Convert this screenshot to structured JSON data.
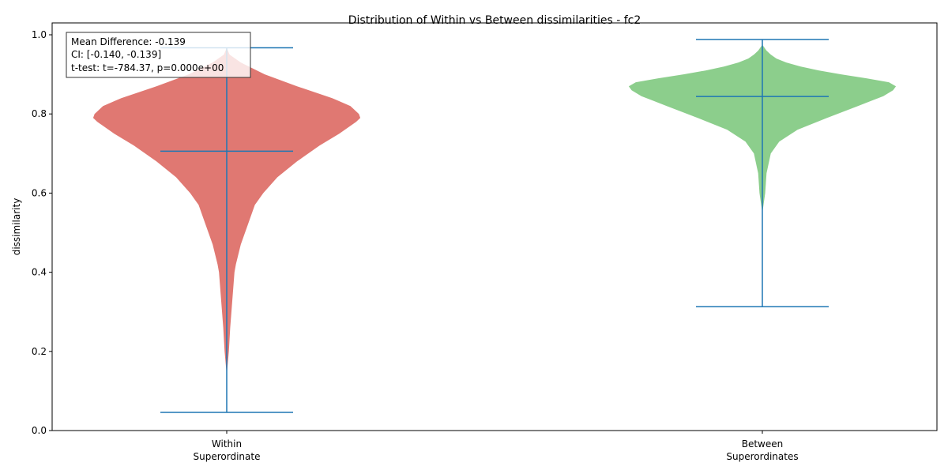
{
  "chart_data": {
    "type": "violin",
    "title": "Distribution of Within vs Between dissimilarities - fc2",
    "xlabel": "",
    "ylabel": "dissimilarity",
    "ylim": [
      0.0,
      1.03
    ],
    "yticks": [
      0.0,
      0.2,
      0.4,
      0.6,
      0.8,
      1.0
    ],
    "ytick_labels": [
      "0.0",
      "0.2",
      "0.4",
      "0.6",
      "0.8",
      "1.0"
    ],
    "grid": false,
    "colors": {
      "line": "#1f77b4"
    },
    "categories": [
      {
        "line1": "Within",
        "line2": "Superordinate"
      },
      {
        "line1": "Between",
        "line2": "Superordinates"
      }
    ],
    "series": [
      {
        "color": "#e07872",
        "min": 0.046,
        "max": 0.967,
        "mean": 0.706,
        "density": [
          [
            0.14,
            0.0
          ],
          [
            0.2,
            0.015
          ],
          [
            0.26,
            0.025
          ],
          [
            0.33,
            0.04
          ],
          [
            0.4,
            0.055
          ],
          [
            0.42,
            0.065
          ],
          [
            0.47,
            0.1
          ],
          [
            0.52,
            0.15
          ],
          [
            0.57,
            0.2
          ],
          [
            0.6,
            0.26
          ],
          [
            0.64,
            0.36
          ],
          [
            0.68,
            0.5
          ],
          [
            0.72,
            0.66
          ],
          [
            0.75,
            0.8
          ],
          [
            0.78,
            0.92
          ],
          [
            0.79,
            0.95
          ],
          [
            0.8,
            0.94
          ],
          [
            0.82,
            0.88
          ],
          [
            0.84,
            0.75
          ],
          [
            0.87,
            0.5
          ],
          [
            0.9,
            0.27
          ],
          [
            0.93,
            0.1
          ],
          [
            0.95,
            0.02
          ],
          [
            0.967,
            0.0
          ]
        ]
      },
      {
        "color": "#8cce8c",
        "min": 0.313,
        "max": 0.988,
        "mean": 0.844,
        "density": [
          [
            0.55,
            0.0
          ],
          [
            0.6,
            0.02
          ],
          [
            0.65,
            0.03
          ],
          [
            0.7,
            0.06
          ],
          [
            0.73,
            0.12
          ],
          [
            0.76,
            0.25
          ],
          [
            0.79,
            0.46
          ],
          [
            0.82,
            0.68
          ],
          [
            0.845,
            0.86
          ],
          [
            0.86,
            0.93
          ],
          [
            0.87,
            0.95
          ],
          [
            0.88,
            0.9
          ],
          [
            0.89,
            0.74
          ],
          [
            0.9,
            0.56
          ],
          [
            0.91,
            0.4
          ],
          [
            0.92,
            0.27
          ],
          [
            0.93,
            0.17
          ],
          [
            0.94,
            0.1
          ],
          [
            0.95,
            0.06
          ],
          [
            0.96,
            0.03
          ],
          [
            0.975,
            0.0
          ]
        ]
      }
    ],
    "annotation": {
      "lines": [
        "Mean Difference: -0.139",
        "CI: [-0.140, -0.139]",
        "t-test: t=-784.37, p=0.000e+00"
      ]
    }
  }
}
